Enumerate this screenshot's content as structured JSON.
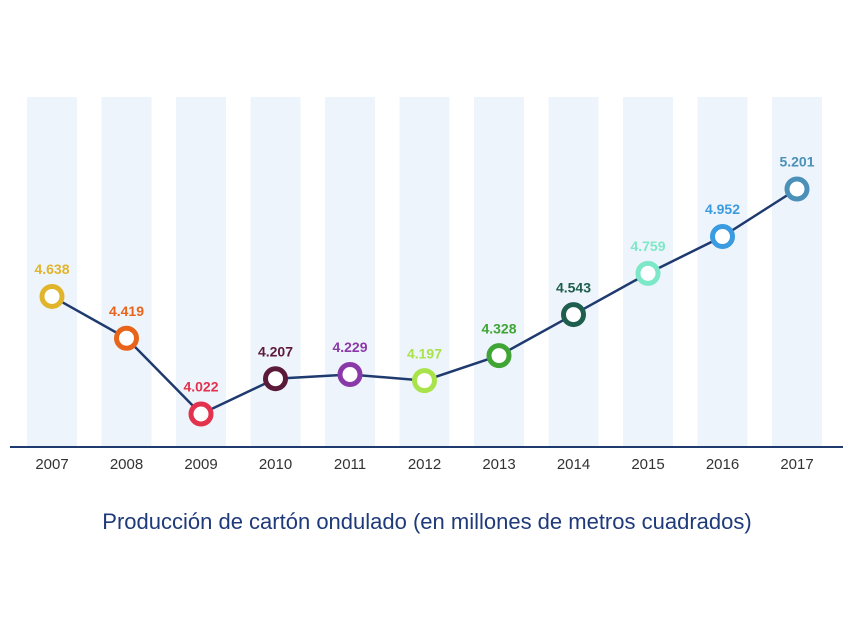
{
  "chart_data": {
    "type": "line",
    "title": "Producción de cartón ondulado (en millones de metros cuadrados)",
    "categories": [
      "2007",
      "2008",
      "2009",
      "2010",
      "2011",
      "2012",
      "2013",
      "2014",
      "2015",
      "2016",
      "2017"
    ],
    "values": [
      4.638,
      4.419,
      4.022,
      4.207,
      4.229,
      4.197,
      4.328,
      4.543,
      4.759,
      4.952,
      5.201
    ],
    "color": "#1f3a6e",
    "colors": [
      "#e0b52b",
      "#e8641b",
      "#e3324d",
      "#5c1a3a",
      "#8a3aa8",
      "#a9e34b",
      "#3fa535",
      "#1e5e4e",
      "#7de8c8",
      "#3a9be0",
      "#4a90b8"
    ]
  }
}
